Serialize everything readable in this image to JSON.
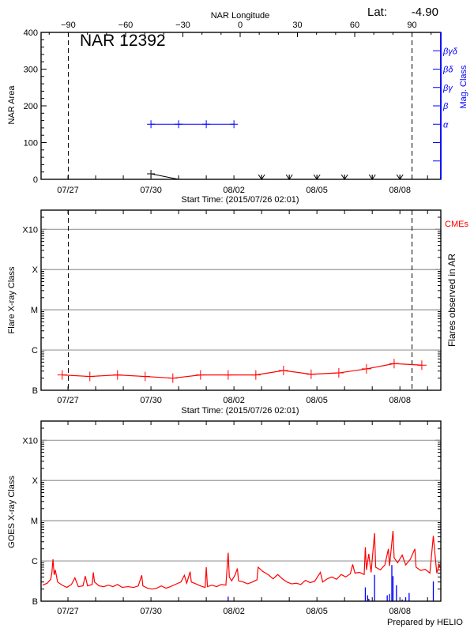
{
  "header": {
    "lat_label": "Lat:",
    "lat_value": "-4.90",
    "top_axis_label": "NAR Longitude",
    "region_title": "NAR 12392",
    "footer": "Prepared by HELIO"
  },
  "colors": {
    "axis": "#000000",
    "mag_class": "#0000ff",
    "flares": "#ff0000",
    "goes": "#ff0000",
    "goes_secondary": "#0000ff",
    "grid": "#999999"
  },
  "chart_data": [
    {
      "type": "line",
      "panel": "nar-area",
      "ylabel": "NAR Area",
      "xlabel": "Start Time: (2015/07/26 02:01)",
      "ylim": [
        0,
        400
      ],
      "yticks": [
        0,
        100,
        200,
        300,
        400
      ],
      "xlim": [
        "07/26 00:40",
        "08/09 11:30"
      ],
      "xtick_labels": [
        "07/27",
        "07/30",
        "08/02",
        "08/05",
        "08/08"
      ],
      "top_axis": {
        "label": "NAR Longitude",
        "ticks": [
          -90,
          -60,
          -30,
          0,
          30,
          60,
          90
        ]
      },
      "limb_longitudes": [
        -90,
        90
      ],
      "right_axis": {
        "label": "Mag. Class",
        "classes": [
          {
            "label": "α",
            "area_level": 150
          },
          {
            "label": "β",
            "area_level": 200
          },
          {
            "label": "βγ",
            "area_level": 250
          },
          {
            "label": "βδ",
            "area_level": 300
          },
          {
            "label": "βγδ",
            "area_level": 350
          }
        ],
        "extra_ticks": [
          50,
          100
        ]
      },
      "area_series": [
        [
          "07/30 00:00",
          15
        ],
        [
          "07/31 00:00",
          0
        ]
      ],
      "no_data_markers": [
        "08/03 00:00",
        "08/04 00:00",
        "08/05 00:00",
        "08/06 00:00",
        "08/07 00:00",
        "08/08 00:00"
      ],
      "mag_class_series": [
        [
          "07/30 00:00",
          "α"
        ],
        [
          "07/31 00:00",
          "α"
        ],
        [
          "08/01 00:00",
          "α"
        ],
        [
          "08/02 00:00",
          "α"
        ]
      ]
    },
    {
      "type": "line",
      "panel": "flare-class",
      "ylabel": "Flare X-ray Class",
      "right_label": "Flares observed in AR",
      "legend_label": "CMEs",
      "xlabel": "Start Time: (2015/07/26 02:01)",
      "yscale": "log",
      "ylim": [
        1e-07,
        0.003
      ],
      "yticks": [
        {
          "label": "B",
          "value": 1e-07
        },
        {
          "label": "C",
          "value": 1e-06
        },
        {
          "label": "M",
          "value": 1e-05
        },
        {
          "label": "X",
          "value": 0.0001
        },
        {
          "label": "X10",
          "value": 0.001
        }
      ],
      "grid": true,
      "xlim": [
        "07/26 00:40",
        "08/09 11:30"
      ],
      "xtick_labels": [
        "07/27",
        "07/30",
        "08/02",
        "08/05",
        "08/08"
      ],
      "limb_longitudes": [
        -90,
        90
      ],
      "series": [
        [
          "07/26 19:00",
          2.4e-07
        ],
        [
          "07/27 19:00",
          2.2e-07
        ],
        [
          "07/28 19:00",
          2.4e-07
        ],
        [
          "07/29 19:00",
          2.2e-07
        ],
        [
          "07/30 19:00",
          2e-07
        ],
        [
          "07/31 19:00",
          2.4e-07
        ],
        [
          "08/01 19:00",
          2.4e-07
        ],
        [
          "08/02 19:00",
          2.4e-07
        ],
        [
          "08/03 19:00",
          3.1e-07
        ],
        [
          "08/04 19:00",
          2.5e-07
        ],
        [
          "08/05 19:00",
          2.7e-07
        ],
        [
          "08/06 19:00",
          3.4e-07
        ],
        [
          "08/07 19:00",
          4.6e-07
        ],
        [
          "08/08 19:00",
          4.2e-07
        ]
      ]
    },
    {
      "type": "line",
      "panel": "goes-xray",
      "ylabel": "GOES X-ray Class",
      "yscale": "log",
      "ylim": [
        1e-07,
        0.003
      ],
      "yticks": [
        {
          "label": "B",
          "value": 1e-07
        },
        {
          "label": "C",
          "value": 1e-06
        },
        {
          "label": "M",
          "value": 1e-05
        },
        {
          "label": "X",
          "value": 0.0001
        },
        {
          "label": "X10",
          "value": 0.001
        }
      ],
      "grid": true,
      "xlim": [
        "07/26 00:40",
        "08/09 11:30"
      ],
      "xtick_labels": [
        "07/27",
        "07/30",
        "08/02",
        "08/05",
        "08/08"
      ],
      "series": [
        [
          "07/26 02:01",
          2.5e-07
        ],
        [
          "07/26 06:00",
          2.8e-07
        ],
        [
          "07/26 09:00",
          3.5e-07
        ],
        [
          "07/26 10:00",
          5e-07
        ],
        [
          "07/26 11:00",
          1.1e-06
        ],
        [
          "07/26 12:00",
          4.5e-07
        ],
        [
          "07/26 13:00",
          6e-07
        ],
        [
          "07/26 15:00",
          3e-07
        ],
        [
          "07/26 19:00",
          2.5e-07
        ],
        [
          "07/26 23:00",
          2.2e-07
        ],
        [
          "07/27 03:00",
          2.6e-07
        ],
        [
          "07/27 06:00",
          3.8e-07
        ],
        [
          "07/27 09:00",
          2.3e-07
        ],
        [
          "07/27 13:00",
          2.4e-07
        ],
        [
          "07/27 15:00",
          4.2e-07
        ],
        [
          "07/27 17:00",
          2.4e-07
        ],
        [
          "07/27 21:00",
          2.6e-07
        ],
        [
          "07/27 22:00",
          5.2e-07
        ],
        [
          "07/27 23:00",
          3e-07
        ],
        [
          "07/28 03:00",
          2.4e-07
        ],
        [
          "07/28 07:00",
          2.3e-07
        ],
        [
          "07/28 11:00",
          2.5e-07
        ],
        [
          "07/28 15:00",
          2.3e-07
        ],
        [
          "07/28 19:00",
          2.6e-07
        ],
        [
          "07/28 23:00",
          2.2e-07
        ],
        [
          "07/29 04:00",
          2.3e-07
        ],
        [
          "07/29 09:00",
          2.2e-07
        ],
        [
          "07/29 13:00",
          2.4e-07
        ],
        [
          "07/29 16:00",
          4.4e-07
        ],
        [
          "07/29 17:00",
          2.4e-07
        ],
        [
          "07/29 21:00",
          2.1e-07
        ],
        [
          "07/30 01:00",
          2e-07
        ],
        [
          "07/30 05:00",
          2.1e-07
        ],
        [
          "07/30 09:00",
          2.4e-07
        ],
        [
          "07/30 13:00",
          2.1e-07
        ],
        [
          "07/30 17:00",
          2.3e-07
        ],
        [
          "07/30 21:00",
          2.6e-07
        ],
        [
          "07/31 02:00",
          3e-07
        ],
        [
          "07/31 05:00",
          4.4e-07
        ],
        [
          "07/31 07:00",
          2.8e-07
        ],
        [
          "07/31 10:00",
          5.4e-07
        ],
        [
          "07/31 11:00",
          3e-07
        ],
        [
          "07/31 15:00",
          2.7e-07
        ],
        [
          "07/31 19:00",
          2.4e-07
        ],
        [
          "07/31 23:00",
          2.2e-07
        ],
        [
          "08/01 00:00",
          7e-07
        ],
        [
          "08/01 01:00",
          2.3e-07
        ],
        [
          "08/01 05:00",
          2.5e-07
        ],
        [
          "08/01 09:00",
          2.3e-07
        ],
        [
          "08/01 13:00",
          2.6e-07
        ],
        [
          "08/01 17:00",
          2.5e-07
        ],
        [
          "08/01 19:00",
          1.6e-06
        ],
        [
          "08/01 20:00",
          4e-07
        ],
        [
          "08/01 22:00",
          3.2e-07
        ],
        [
          "08/02 01:00",
          4.5e-07
        ],
        [
          "08/02 03:00",
          6.5e-07
        ],
        [
          "08/02 04:00",
          3.2e-07
        ],
        [
          "08/02 08:00",
          3e-07
        ],
        [
          "08/02 12:00",
          2.7e-07
        ],
        [
          "08/02 16:00",
          3e-07
        ],
        [
          "08/02 20:00",
          3.4e-07
        ],
        [
          "08/02 21:00",
          7e-07
        ],
        [
          "08/03 01:00",
          5.5e-07
        ],
        [
          "08/03 06:00",
          4.5e-07
        ],
        [
          "08/03 10:00",
          3.6e-07
        ],
        [
          "08/03 14:00",
          4.6e-07
        ],
        [
          "08/03 18:00",
          3.6e-07
        ],
        [
          "08/03 22:00",
          3e-07
        ],
        [
          "08/04 02:00",
          2.7e-07
        ],
        [
          "08/04 06:00",
          2.8e-07
        ],
        [
          "08/04 10:00",
          2.6e-07
        ],
        [
          "08/04 14:00",
          3.3e-07
        ],
        [
          "08/04 18:00",
          2.9e-07
        ],
        [
          "08/04 22:00",
          3.1e-07
        ],
        [
          "08/05 03:00",
          5.2e-07
        ],
        [
          "08/05 05:00",
          3e-07
        ],
        [
          "08/05 09:00",
          3.6e-07
        ],
        [
          "08/05 13:00",
          4e-07
        ],
        [
          "08/05 17:00",
          3.5e-07
        ],
        [
          "08/05 21:00",
          4.6e-07
        ],
        [
          "08/06 01:00",
          4e-07
        ],
        [
          "08/06 05:00",
          4.8e-07
        ],
        [
          "08/06 07:00",
          8.2e-07
        ],
        [
          "08/06 09:00",
          5e-07
        ],
        [
          "08/06 13:00",
          5.2e-07
        ],
        [
          "08/06 17:00",
          4.6e-07
        ],
        [
          "08/06 18:00",
          2.2e-06
        ],
        [
          "08/06 19:00",
          6e-07
        ],
        [
          "08/06 21:00",
          1.5e-06
        ],
        [
          "08/06 23:00",
          5.2e-07
        ],
        [
          "08/07 02:00",
          4.9e-06
        ],
        [
          "08/07 03:00",
          7e-07
        ],
        [
          "08/07 07:00",
          6e-07
        ],
        [
          "08/07 11:00",
          8e-07
        ],
        [
          "08/07 14:00",
          2e-06
        ],
        [
          "08/07 15:00",
          7.5e-07
        ],
        [
          "08/07 18:00",
          5.6e-06
        ],
        [
          "08/07 19:00",
          1.2e-06
        ],
        [
          "08/07 22:00",
          9e-07
        ],
        [
          "08/08 02:00",
          1.4e-06
        ],
        [
          "08/08 05:00",
          8e-07
        ],
        [
          "08/08 09:00",
          1.1e-06
        ],
        [
          "08/08 13:00",
          2e-06
        ],
        [
          "08/08 14:00",
          7e-07
        ],
        [
          "08/08 18:00",
          5.8e-07
        ],
        [
          "08/08 22:00",
          6.2e-07
        ],
        [
          "08/09 02:00",
          5e-07
        ],
        [
          "08/09 05:00",
          4.2e-06
        ],
        [
          "08/09 06:00",
          2e-06
        ],
        [
          "08/09 08:00",
          5e-07
        ],
        [
          "08/09 10:00",
          8e-07
        ],
        [
          "08/09 11:30",
          6.5e-07
        ]
      ],
      "secondary_bars": [
        [
          "08/01 19:00",
          1.3e-07
        ],
        [
          "08/06 18:00",
          2.2e-07
        ],
        [
          "08/06 20:00",
          1.4e-07
        ],
        [
          "08/06 21:00",
          1.15e-07
        ],
        [
          "08/07 02:00",
          4.5e-07
        ],
        [
          "08/07 13:00",
          1.4e-07
        ],
        [
          "08/07 15:00",
          1.5e-07
        ],
        [
          "08/07 17:00",
          7.9e-07
        ],
        [
          "08/07 18:00",
          4.2e-07
        ],
        [
          "08/07 21:00",
          2.5e-07
        ],
        [
          "08/08 02:00",
          1.1e-07
        ],
        [
          "08/08 05:00",
          1.25e-07
        ],
        [
          "08/08 08:00",
          1.6e-07
        ],
        [
          "08/09 05:00",
          3.1e-07
        ]
      ]
    }
  ]
}
